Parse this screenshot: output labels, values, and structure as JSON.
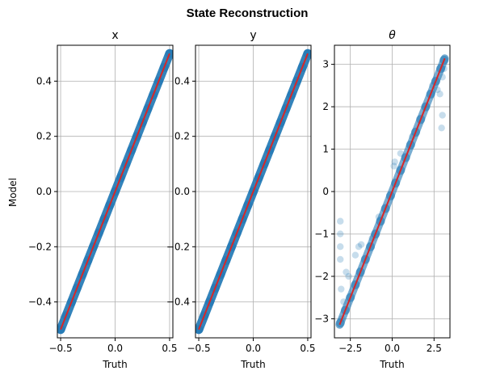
{
  "chart_data": {
    "type": "scatter",
    "title": "State Reconstruction",
    "ylabel": "Model",
    "colors": {
      "points": "#1f77b4",
      "identity_line": "#d62728"
    },
    "grid": true,
    "panels": [
      {
        "title": "x",
        "xlabel": "Truth",
        "xlim": [
          -0.53,
          0.53
        ],
        "ylim": [
          -0.53,
          0.53
        ],
        "xticks": [
          -0.5,
          0.0,
          0.5
        ],
        "xtick_labels": [
          "−0.5",
          "0.0",
          "0.5"
        ],
        "yticks": [
          -0.4,
          -0.2,
          0.0,
          0.2,
          0.4
        ],
        "ytick_labels": [
          "−0.4",
          "−0.2",
          "0.0",
          "0.2",
          "0.4"
        ],
        "identity_range": [
          -0.5,
          0.5
        ],
        "points": [
          [
            -0.5,
            -0.5
          ],
          [
            -0.45,
            -0.45
          ],
          [
            -0.4,
            -0.4
          ],
          [
            -0.35,
            -0.35
          ],
          [
            -0.3,
            -0.3
          ],
          [
            -0.25,
            -0.25
          ],
          [
            -0.2,
            -0.2
          ],
          [
            -0.15,
            -0.15
          ],
          [
            -0.1,
            -0.1
          ],
          [
            -0.05,
            -0.05
          ],
          [
            0.0,
            0.0
          ],
          [
            0.05,
            0.05
          ],
          [
            0.1,
            0.1
          ],
          [
            0.15,
            0.15
          ],
          [
            0.2,
            0.2
          ],
          [
            0.25,
            0.25
          ],
          [
            0.3,
            0.3
          ],
          [
            0.35,
            0.35
          ],
          [
            0.4,
            0.4
          ],
          [
            0.45,
            0.45
          ],
          [
            0.5,
            0.5
          ]
        ]
      },
      {
        "title": "y",
        "xlabel": "Truth",
        "xlim": [
          -0.53,
          0.53
        ],
        "ylim": [
          -0.53,
          0.53
        ],
        "xticks": [
          -0.5,
          0.0,
          0.5
        ],
        "xtick_labels": [
          "−0.5",
          "0.0",
          "0.5"
        ],
        "yticks": [
          -0.4,
          -0.2,
          0.0,
          0.2,
          0.4
        ],
        "ytick_labels": [
          "−0.4",
          "−0.2",
          "0.0",
          "0.2",
          "0.4"
        ],
        "identity_range": [
          -0.5,
          0.5
        ],
        "points": [
          [
            -0.5,
            -0.5
          ],
          [
            -0.45,
            -0.45
          ],
          [
            -0.4,
            -0.4
          ],
          [
            -0.35,
            -0.35
          ],
          [
            -0.3,
            -0.3
          ],
          [
            -0.25,
            -0.25
          ],
          [
            -0.2,
            -0.2
          ],
          [
            -0.15,
            -0.15
          ],
          [
            -0.1,
            -0.1
          ],
          [
            -0.05,
            -0.05
          ],
          [
            0.0,
            0.0
          ],
          [
            0.05,
            0.05
          ],
          [
            0.1,
            0.1
          ],
          [
            0.15,
            0.15
          ],
          [
            0.2,
            0.2
          ],
          [
            0.25,
            0.25
          ],
          [
            0.3,
            0.3
          ],
          [
            0.35,
            0.35
          ],
          [
            0.4,
            0.4
          ],
          [
            0.45,
            0.45
          ],
          [
            0.5,
            0.5
          ]
        ]
      },
      {
        "title": "θ",
        "xlabel": "Truth",
        "xlim": [
          -3.45,
          3.45
        ],
        "ylim": [
          -3.45,
          3.45
        ],
        "xticks": [
          -2.5,
          0.0,
          2.5
        ],
        "xtick_labels": [
          "−2.5",
          "0.0",
          "2.5"
        ],
        "yticks": [
          -3,
          -2,
          -1,
          0,
          1,
          2,
          3
        ],
        "ytick_labels": [
          "−3",
          "−2",
          "−1",
          "0",
          "1",
          "2",
          "3"
        ],
        "identity_range": [
          -3.14,
          3.14
        ],
        "points": [
          [
            -3.1,
            -3.1
          ],
          [
            -2.8,
            -2.8
          ],
          [
            -2.5,
            -2.5
          ],
          [
            -2.2,
            -2.2
          ],
          [
            -1.9,
            -1.9
          ],
          [
            -1.6,
            -1.6
          ],
          [
            -1.3,
            -1.3
          ],
          [
            -1.0,
            -1.0
          ],
          [
            -0.7,
            -0.7
          ],
          [
            -0.4,
            -0.4
          ],
          [
            -0.1,
            -0.1
          ],
          [
            0.2,
            0.2
          ],
          [
            0.5,
            0.5
          ],
          [
            0.8,
            0.8
          ],
          [
            1.1,
            1.1
          ],
          [
            1.4,
            1.4
          ],
          [
            1.7,
            1.7
          ],
          [
            2.0,
            2.0
          ],
          [
            2.3,
            2.3
          ],
          [
            2.6,
            2.6
          ],
          [
            2.9,
            2.9
          ],
          [
            3.1,
            3.1
          ],
          [
            -3.1,
            -0.7
          ],
          [
            -3.1,
            -1.0
          ],
          [
            -3.1,
            -1.3
          ],
          [
            -3.1,
            -1.6
          ],
          [
            -3.05,
            -2.3
          ],
          [
            -2.9,
            -2.6
          ],
          [
            -3.0,
            -3.0
          ],
          [
            -2.75,
            -1.9
          ],
          [
            -2.6,
            -2.0
          ],
          [
            -2.2,
            -1.5
          ],
          [
            -2.0,
            -1.3
          ],
          [
            -1.85,
            -1.25
          ],
          [
            -1.2,
            -1.1
          ],
          [
            -0.8,
            -0.6
          ],
          [
            0.1,
            0.6
          ],
          [
            0.15,
            0.7
          ],
          [
            0.5,
            0.9
          ],
          [
            1.2,
            1.3
          ],
          [
            2.4,
            2.5
          ],
          [
            2.7,
            2.4
          ],
          [
            2.85,
            2.3
          ],
          [
            3.0,
            1.8
          ],
          [
            2.95,
            1.5
          ],
          [
            3.0,
            2.7
          ],
          [
            3.1,
            2.9
          ]
        ],
        "outliers_start_index": 22
      }
    ]
  }
}
